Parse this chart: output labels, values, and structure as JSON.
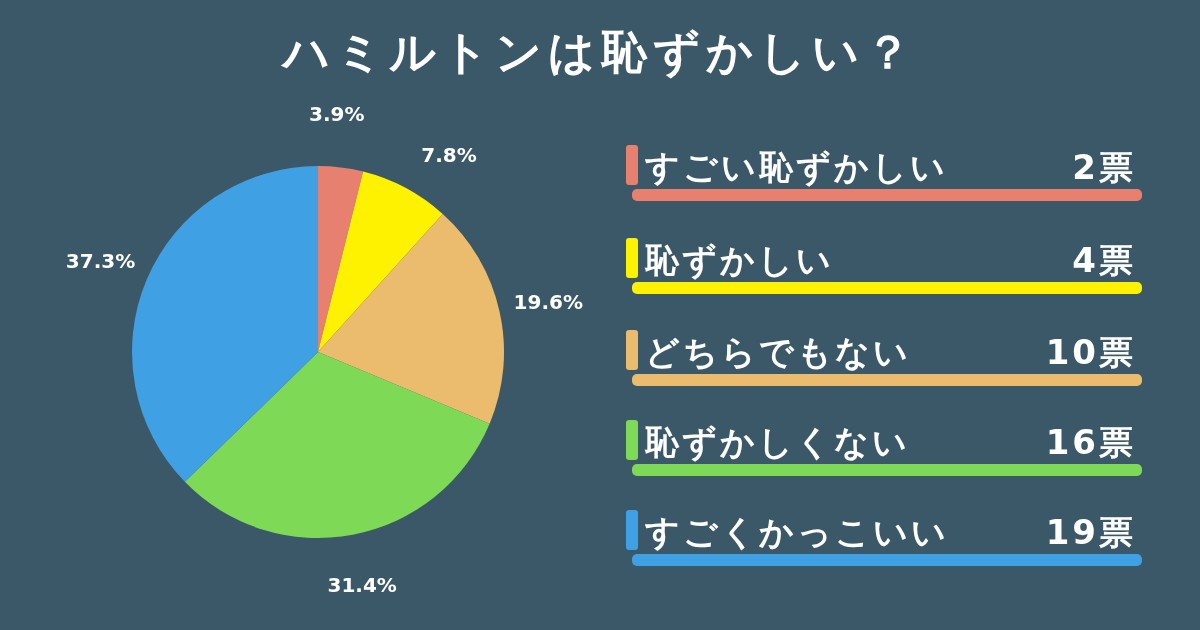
{
  "chart_data": {
    "type": "pie",
    "title": "ハミルトンは恥ずかしい？",
    "categories": [
      "すごい恥ずかしい",
      "恥ずかしい",
      "どちらでもない",
      "恥ずかしくない",
      "すごくかっこいい"
    ],
    "values": [
      3.9,
      7.8,
      19.6,
      31.4,
      37.3
    ],
    "value_labels": [
      "3.9%",
      "7.8%",
      "19.6%",
      "31.4%",
      "37.3%"
    ],
    "colors": [
      "#e8806f",
      "#fff200",
      "#ecbc6e",
      "#7ed957",
      "#3fa0e4"
    ],
    "annotations": [
      "2票",
      "4票",
      "10票",
      "16票",
      "19票"
    ],
    "legend": "right"
  }
}
